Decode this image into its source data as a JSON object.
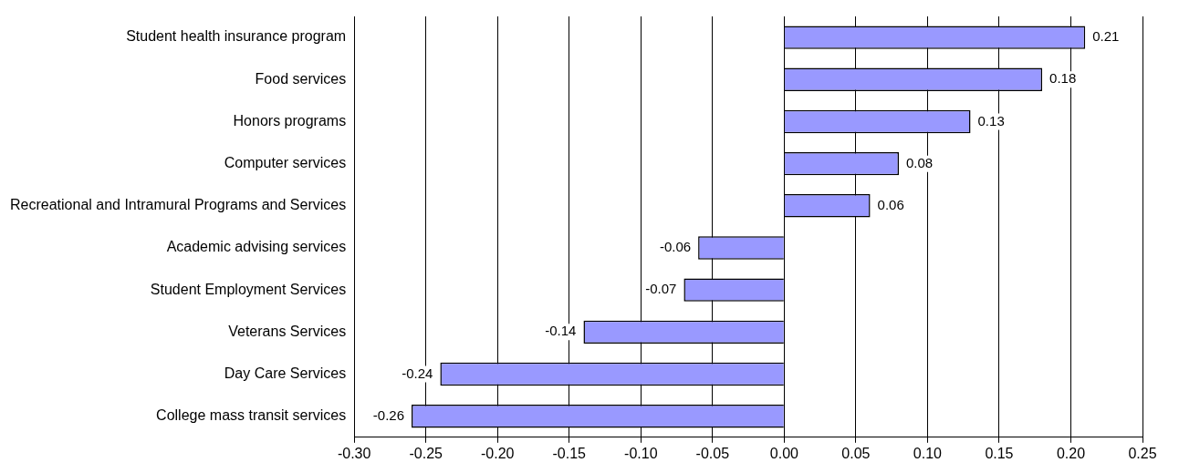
{
  "chart_data": {
    "type": "bar",
    "orientation": "horizontal",
    "categories": [
      "Student health insurance program",
      "Food services",
      "Honors programs",
      "Computer services",
      "Recreational and Intramural Programs and Services",
      "Academic advising services",
      "Student Employment Services",
      "Veterans Services",
      "Day Care Services",
      "College mass transit services"
    ],
    "values": [
      0.21,
      0.18,
      0.13,
      0.08,
      0.06,
      -0.06,
      -0.07,
      -0.14,
      -0.24,
      -0.26
    ],
    "color": "#9999ff",
    "xlim": [
      -0.3,
      0.25
    ],
    "xticks": [
      {
        "value": -0.3,
        "label": "-0.30"
      },
      {
        "value": -0.25,
        "label": "-0.25"
      },
      {
        "value": -0.2,
        "label": "-0.20"
      },
      {
        "value": -0.15,
        "label": "-0.15"
      },
      {
        "value": -0.1,
        "label": "-0.10"
      },
      {
        "value": -0.05,
        "label": "-0.05"
      },
      {
        "value": 0,
        "label": "0.00"
      },
      {
        "value": 0.05,
        "label": "0.05"
      },
      {
        "value": 0.1,
        "label": "0.10"
      },
      {
        "value": 0.15,
        "label": "0.15"
      },
      {
        "value": 0.2,
        "label": "0.20"
      },
      {
        "value": 0.25,
        "label": "0.25"
      }
    ],
    "grid": "x",
    "data_labels": true
  }
}
